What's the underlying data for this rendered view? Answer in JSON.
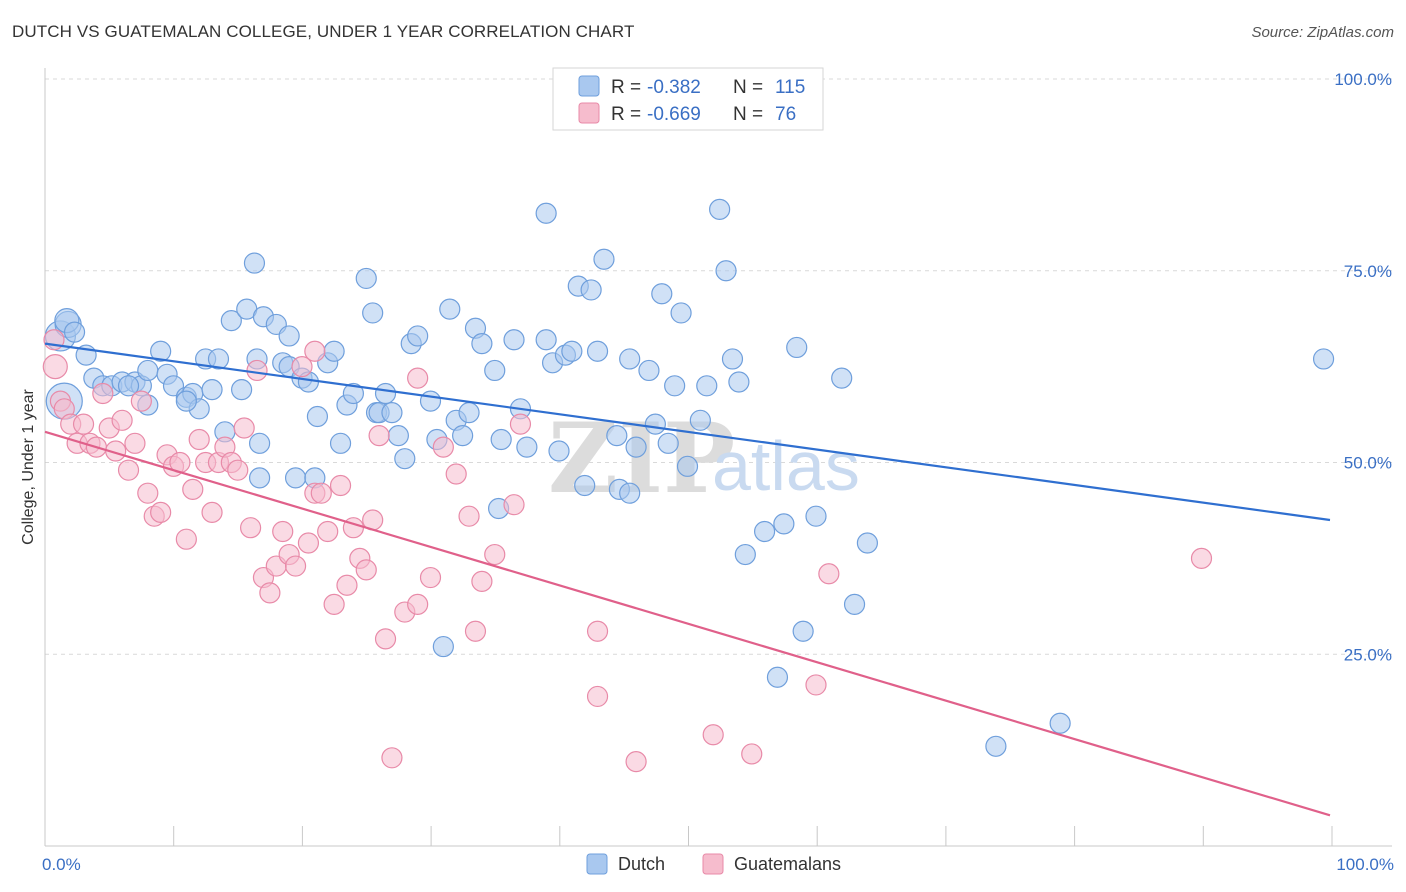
{
  "header": {
    "title": "DUTCH VS GUATEMALAN COLLEGE, UNDER 1 YEAR CORRELATION CHART",
    "source": "Source: ZipAtlas.com"
  },
  "legend": {
    "dutch": {
      "r_label": "R =",
      "r_value": "-0.382",
      "n_label": "N =",
      "n_value": "115"
    },
    "guatemalans": {
      "r_label": "R =",
      "r_value": "-0.669",
      "n_label": "N =",
      "n_value": "76"
    }
  },
  "bottom_legend": {
    "dutch": "Dutch",
    "guatemalans": "Guatemalans"
  },
  "watermark": {
    "zip": "ZIP",
    "atlas": "atlas"
  },
  "colors": {
    "dutch_fill": "#a9c8ef",
    "dutch_stroke": "#6f9fdc",
    "dutch_line": "#2f6fd0",
    "guat_fill": "#f6bccd",
    "guat_stroke": "#e88aa8",
    "guat_line": "#e0608a",
    "grid": "#d9d9d9",
    "tick_label": "#3a6fc4"
  },
  "chart_data": {
    "type": "scatter",
    "title": "DUTCH VS GUATEMALAN COLLEGE, UNDER 1 YEAR CORRELATION CHART",
    "xlabel": "",
    "ylabel": "College, Under 1 year",
    "xlim": [
      0,
      100
    ],
    "ylim": [
      0,
      100
    ],
    "x_ticks": [
      "0.0%",
      "100.0%"
    ],
    "y_ticks": [
      "25.0%",
      "50.0%",
      "75.0%",
      "100.0%"
    ],
    "grid": true,
    "legend_position": "top-center",
    "series": [
      {
        "name": "Dutch",
        "r": -0.382,
        "n": 115,
        "trend": {
          "x": [
            0,
            100
          ],
          "y": [
            65.5,
            42.5
          ]
        },
        "points": [
          [
            1.5,
            58,
            18
          ],
          [
            1.2,
            66.5,
            15
          ],
          [
            1.8,
            68,
            13
          ],
          [
            1.7,
            68.5,
            12
          ],
          [
            2.3,
            67,
            10
          ],
          [
            3.2,
            64,
            10
          ],
          [
            3.8,
            61,
            10
          ],
          [
            4.5,
            60,
            10
          ],
          [
            5.2,
            60,
            10
          ],
          [
            6,
            60.5,
            10
          ],
          [
            7,
            60.5,
            10
          ],
          [
            7.5,
            60,
            10
          ],
          [
            8,
            57.5,
            10
          ],
          [
            8,
            62,
            10
          ],
          [
            9,
            64.5,
            10
          ],
          [
            9.5,
            61.5,
            10
          ],
          [
            10,
            60,
            10
          ],
          [
            11,
            58.5,
            10
          ],
          [
            11.5,
            59,
            10
          ],
          [
            12,
            57,
            10
          ],
          [
            12.5,
            63.5,
            10
          ],
          [
            13,
            59.5,
            10
          ],
          [
            13.5,
            63.5,
            10
          ],
          [
            14,
            54,
            10
          ],
          [
            14.5,
            68.5,
            10
          ],
          [
            15.3,
            59.5,
            10
          ],
          [
            15.7,
            70,
            10
          ],
          [
            16.5,
            63.5,
            10
          ],
          [
            16.3,
            76,
            10
          ],
          [
            16.7,
            52.5,
            10
          ],
          [
            17,
            69,
            10
          ],
          [
            18,
            68,
            10
          ],
          [
            18.5,
            63,
            10
          ],
          [
            19,
            66.5,
            10
          ],
          [
            19,
            62.5,
            10
          ],
          [
            19.5,
            48,
            10
          ],
          [
            20,
            61,
            10
          ],
          [
            20.5,
            60.5,
            10
          ],
          [
            21,
            48,
            10
          ],
          [
            21.2,
            56,
            10
          ],
          [
            22,
            63,
            10
          ],
          [
            22.5,
            64.5,
            10
          ],
          [
            23,
            52.5,
            10
          ],
          [
            23.5,
            57.5,
            10
          ],
          [
            24,
            59,
            10
          ],
          [
            25,
            74,
            10
          ],
          [
            25.5,
            69.5,
            10
          ],
          [
            25.8,
            56.5,
            10
          ],
          [
            26,
            56.5,
            10
          ],
          [
            26.5,
            59,
            10
          ],
          [
            27,
            56.5,
            10
          ],
          [
            27.5,
            53.5,
            10
          ],
          [
            28,
            50.5,
            10
          ],
          [
            28.5,
            65.5,
            10
          ],
          [
            29,
            66.5,
            10
          ],
          [
            30,
            58,
            10
          ],
          [
            30.5,
            53,
            10
          ],
          [
            31,
            26,
            10
          ],
          [
            31.5,
            70,
            10
          ],
          [
            32,
            55.5,
            10
          ],
          [
            32.5,
            53.5,
            10
          ],
          [
            33,
            56.5,
            10
          ],
          [
            33.5,
            67.5,
            10
          ],
          [
            34,
            65.5,
            10
          ],
          [
            35,
            62,
            10
          ],
          [
            35.3,
            44,
            10
          ],
          [
            35.5,
            53,
            10
          ],
          [
            36.5,
            66,
            10
          ],
          [
            37,
            57,
            10
          ],
          [
            37.5,
            52,
            10
          ],
          [
            39,
            66,
            10
          ],
          [
            39,
            82.5,
            10
          ],
          [
            39.5,
            63,
            10
          ],
          [
            40,
            51.5,
            10
          ],
          [
            40.5,
            64,
            10
          ],
          [
            41,
            64.5,
            10
          ],
          [
            41.5,
            73,
            10
          ],
          [
            42,
            47,
            10
          ],
          [
            42.5,
            72.5,
            10
          ],
          [
            43,
            64.5,
            10
          ],
          [
            43.5,
            76.5,
            10
          ],
          [
            44.5,
            53.5,
            10
          ],
          [
            44.7,
            46.5,
            10
          ],
          [
            45.5,
            46,
            10
          ],
          [
            45.5,
            63.5,
            10
          ],
          [
            46,
            52,
            10
          ],
          [
            47,
            62,
            10
          ],
          [
            47.5,
            55,
            10
          ],
          [
            48,
            72,
            10
          ],
          [
            48.5,
            52.5,
            10
          ],
          [
            49,
            60,
            10
          ],
          [
            49.5,
            69.5,
            10
          ],
          [
            50,
            49.5,
            10
          ],
          [
            51,
            55.5,
            10
          ],
          [
            51.5,
            60,
            10
          ],
          [
            52.5,
            83,
            10
          ],
          [
            53,
            75,
            10
          ],
          [
            53.5,
            63.5,
            10
          ],
          [
            54,
            60.5,
            10
          ],
          [
            54.5,
            38,
            10
          ],
          [
            56,
            41,
            10
          ],
          [
            57.5,
            42,
            10
          ],
          [
            58.5,
            65,
            10
          ],
          [
            59,
            28,
            10
          ],
          [
            60,
            43,
            10
          ],
          [
            62,
            61,
            10
          ],
          [
            63,
            31.5,
            10
          ],
          [
            64,
            39.5,
            10
          ],
          [
            57,
            22,
            10
          ],
          [
            74,
            13,
            10
          ],
          [
            79,
            16,
            10
          ],
          [
            99.5,
            63.5,
            10
          ],
          [
            16.7,
            48,
            10
          ],
          [
            11,
            58,
            10
          ],
          [
            6.5,
            60,
            10
          ]
        ]
      },
      {
        "name": "Guatemalans",
        "r": -0.669,
        "n": 76,
        "trend": {
          "x": [
            0,
            100
          ],
          "y": [
            54,
            4
          ]
        },
        "points": [
          [
            0.7,
            66,
            10
          ],
          [
            0.8,
            62.5,
            12
          ],
          [
            1.2,
            58,
            10
          ],
          [
            1.5,
            57,
            10
          ],
          [
            2,
            55,
            10
          ],
          [
            2.5,
            52.5,
            10
          ],
          [
            3,
            55,
            10
          ],
          [
            3.5,
            52.5,
            10
          ],
          [
            4,
            52,
            10
          ],
          [
            4.5,
            59,
            10
          ],
          [
            5,
            54.5,
            10
          ],
          [
            5.5,
            51.5,
            10
          ],
          [
            6,
            55.5,
            10
          ],
          [
            6.5,
            49,
            10
          ],
          [
            7,
            52.5,
            10
          ],
          [
            7.5,
            58,
            10
          ],
          [
            8,
            46,
            10
          ],
          [
            8.5,
            43,
            10
          ],
          [
            9,
            43.5,
            10
          ],
          [
            9.5,
            51,
            10
          ],
          [
            10,
            49.5,
            10
          ],
          [
            10.5,
            50,
            10
          ],
          [
            11,
            40,
            10
          ],
          [
            11.5,
            46.5,
            10
          ],
          [
            12,
            53,
            10
          ],
          [
            12.5,
            50,
            10
          ],
          [
            13,
            43.5,
            10
          ],
          [
            13.5,
            50,
            10
          ],
          [
            14,
            52,
            10
          ],
          [
            14.5,
            50,
            10
          ],
          [
            15,
            49,
            10
          ],
          [
            15.5,
            54.5,
            10
          ],
          [
            16,
            41.5,
            10
          ],
          [
            16.5,
            62,
            10
          ],
          [
            17,
            35,
            10
          ],
          [
            17.5,
            33,
            10
          ],
          [
            18,
            36.5,
            10
          ],
          [
            18.5,
            41,
            10
          ],
          [
            19,
            38,
            10
          ],
          [
            19.5,
            36.5,
            10
          ],
          [
            20.5,
            39.5,
            10
          ],
          [
            21,
            46,
            10
          ],
          [
            21.5,
            46,
            10
          ],
          [
            22,
            41,
            10
          ],
          [
            22.5,
            31.5,
            10
          ],
          [
            23,
            47,
            10
          ],
          [
            23.5,
            34,
            10
          ],
          [
            24,
            41.5,
            10
          ],
          [
            24.5,
            37.5,
            10
          ],
          [
            25,
            36,
            10
          ],
          [
            25.5,
            42.5,
            10
          ],
          [
            26,
            53.5,
            10
          ],
          [
            26.5,
            27,
            10
          ],
          [
            27,
            11.5,
            10
          ],
          [
            28,
            30.5,
            10
          ],
          [
            29,
            31.5,
            10
          ],
          [
            30,
            35,
            10
          ],
          [
            31,
            52,
            10
          ],
          [
            32,
            48.5,
            10
          ],
          [
            33,
            43,
            10
          ],
          [
            33.5,
            28,
            10
          ],
          [
            34,
            34.5,
            10
          ],
          [
            35,
            38,
            10
          ],
          [
            36.5,
            44.5,
            10
          ],
          [
            37,
            55,
            10
          ],
          [
            43,
            28,
            10
          ],
          [
            43,
            19.5,
            10
          ],
          [
            46,
            11,
            10
          ],
          [
            52,
            14.5,
            10
          ],
          [
            55,
            12,
            10
          ],
          [
            60,
            21,
            10
          ],
          [
            61,
            35.5,
            10
          ],
          [
            90,
            37.5,
            10
          ],
          [
            29,
            61,
            10
          ],
          [
            20,
            62.5,
            10
          ],
          [
            21,
            64.5,
            10
          ]
        ]
      }
    ]
  }
}
